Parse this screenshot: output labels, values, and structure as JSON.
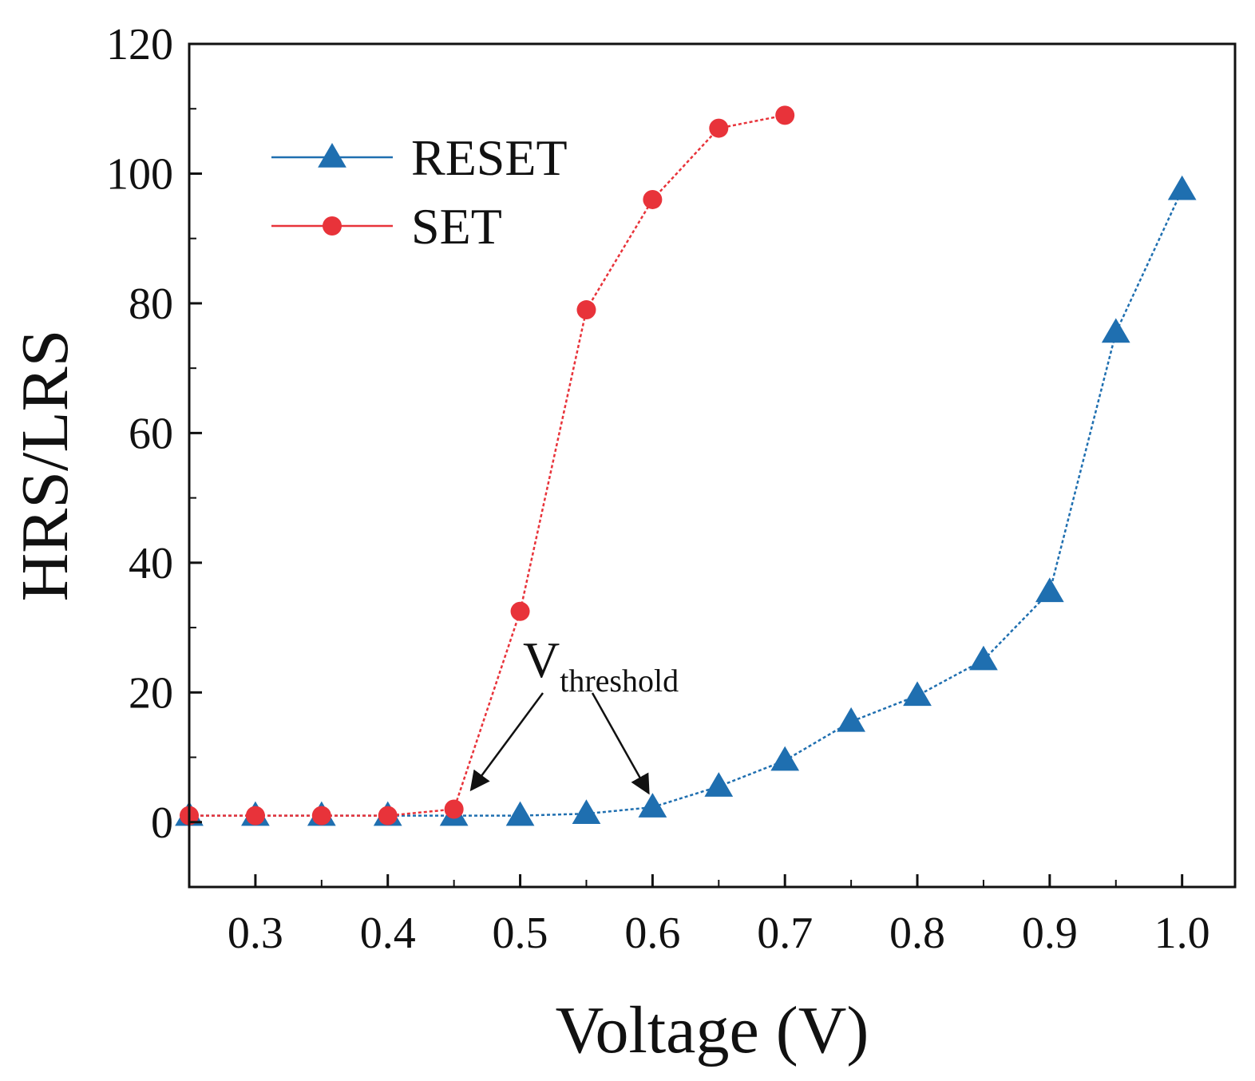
{
  "chart_data": {
    "type": "line",
    "title": "",
    "xlabel": "Voltage (V)",
    "ylabel": "HRS/LRS",
    "xlim": [
      0.25,
      1.04
    ],
    "ylim": [
      -10,
      120
    ],
    "xticks": [
      0.3,
      0.4,
      0.5,
      0.6,
      0.7,
      0.8,
      0.9,
      1.0
    ],
    "xtick_labels": [
      "0.3",
      "0.4",
      "0.5",
      "0.6",
      "0.7",
      "0.8",
      "0.9",
      "1.0"
    ],
    "yticks": [
      0,
      20,
      40,
      60,
      80,
      100,
      120
    ],
    "ytick_labels": [
      "0",
      "20",
      "40",
      "60",
      "80",
      "100",
      "120"
    ],
    "grid": false,
    "legend_position": "top-left",
    "series": [
      {
        "name": "RESET",
        "marker": "triangle",
        "color": "#1f6fb0",
        "x": [
          0.25,
          0.3,
          0.35,
          0.4,
          0.45,
          0.5,
          0.55,
          0.6,
          0.65,
          0.7,
          0.75,
          0.8,
          0.85,
          0.9,
          0.95,
          1.0
        ],
        "y": [
          1,
          1,
          1,
          1,
          1,
          1,
          1.3,
          2.3,
          5.5,
          9.5,
          15.5,
          19.5,
          25,
          35.5,
          75.5,
          97.5
        ]
      },
      {
        "name": "SET",
        "marker": "circle",
        "color": "#e8333a",
        "x": [
          0.25,
          0.3,
          0.35,
          0.4,
          0.45,
          0.5,
          0.55,
          0.6,
          0.65,
          0.7
        ],
        "y": [
          1,
          1,
          1,
          1,
          2,
          32.5,
          79,
          96,
          107,
          109
        ]
      }
    ],
    "annotation": {
      "main": "V",
      "sub": "threshold",
      "arrow_targets": [
        [
          0.463,
          5
        ],
        [
          0.597,
          4.5
        ]
      ]
    }
  }
}
